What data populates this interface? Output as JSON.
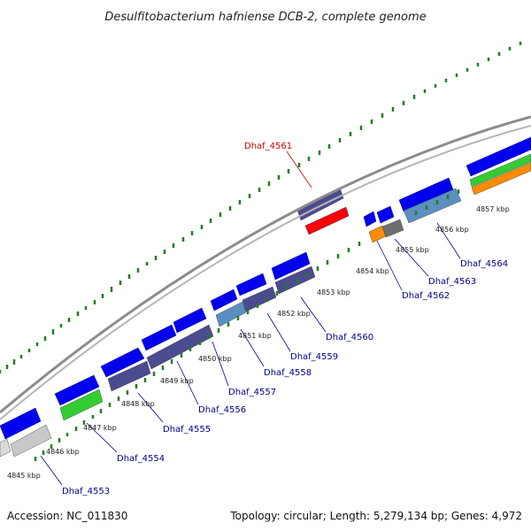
{
  "title": "Desulfitobacterium hafniense DCB-2, complete genome",
  "footer": {
    "accession": "Accession: NC_011830",
    "summary": "Topology: circular; Length: 5,279,134 bp; Genes: 4,972"
  },
  "kbp_labels": [
    "4845 kbp",
    "4846 kbp",
    "4847 kbp",
    "4848 kbp",
    "4849 kbp",
    "4850 kbp",
    "4851 kbp",
    "4852 kbp",
    "4853 kbp",
    "4854 kbp",
    "4855 kbp",
    "4856 kbp",
    "4857 kbp"
  ],
  "gene_labels": [
    "Dhaf_4553",
    "Dhaf_4554",
    "Dhaf_4555",
    "Dhaf_4556",
    "Dhaf_4557",
    "Dhaf_4558",
    "Dhaf_4559",
    "Dhaf_4560",
    "Dhaf_4561",
    "Dhaf_4562",
    "Dhaf_4563",
    "Dhaf_4564"
  ],
  "highlighted_gene": "Dhaf_4561",
  "colors": {
    "forward_cds": "#0000ee",
    "reverse_cds": "#4b4b8f",
    "highlight": "#ff0000",
    "green": "#33cc33",
    "orange": "#ff8c00",
    "gray": "#c8c8c8",
    "darkgray": "#6e6e6e",
    "steelblue": "#5b8fc0",
    "backbone": "#8c8c8c",
    "gc_ticks": "#1f7f1f"
  }
}
